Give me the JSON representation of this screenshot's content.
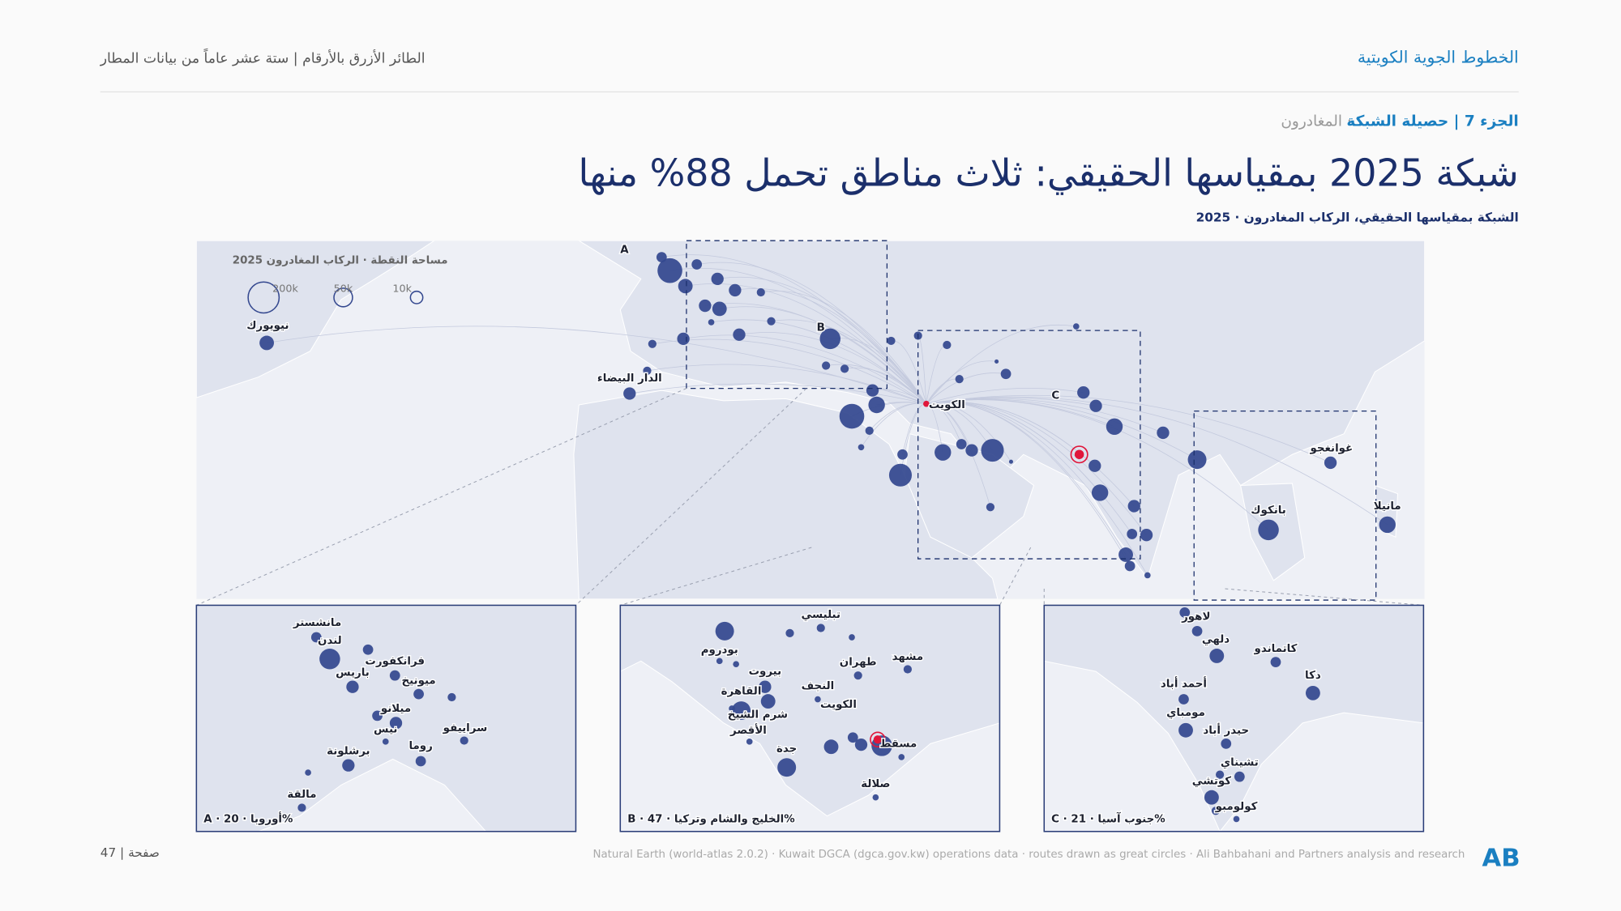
{
  "header": {
    "brand": "الخطوط الجوية الكويتية",
    "report": "الطائر الأزرق بالأرقام | ستة عشر عاماً من بيانات المطار"
  },
  "section": {
    "part": "الجزء 7 | حصيلة الشبكة",
    "topic": "· المغادرون"
  },
  "title": "شبكة 2025 بمقياسها الحقيقي: ثلاث مناطق تحمل 88% منها",
  "subtitle": "الشبكة بمقياسها الحقيقي، الركاب المغادرون · 2025",
  "legend": {
    "title": "مساحة النقطة · الركاب المغادرون 2025",
    "sizes": [
      "200k",
      "50k",
      "10k"
    ]
  },
  "map": {
    "labels": [
      "A",
      "B",
      "C",
      "نيويورك",
      "الدار البيضاء",
      "الكويت",
      "غوانغجو",
      "بانكوك",
      "مانيلا"
    ]
  },
  "insets": [
    {
      "caption": "A · أوروبا · 20%",
      "labels": [
        "مانشستر",
        "لندن",
        "فرانكفورت",
        "باريس",
        "ميونيخ",
        "ميلانو",
        "نيس",
        "سراييفو",
        "روما",
        "برشلونة",
        "مالقة"
      ]
    },
    {
      "caption": "B · الخليج والشام وتركيا · 47%",
      "labels": [
        "تبليسي",
        "بودروم",
        "طهران",
        "مشهد",
        "بيروت",
        "النجف",
        "القاهرة",
        "الكويت",
        "شرم الشيخ",
        "الأقصر",
        "مسقط",
        "جدة",
        "صلالة"
      ]
    },
    {
      "caption": "C · جنوب آسيا · 21%",
      "labels": [
        "لاهور",
        "دلهي",
        "كاتماندو",
        "أحمد أباد",
        "دكا",
        "مومباي",
        "حيدر أباد",
        "تشيناي",
        "كوتشي",
        "كولومبو"
      ]
    }
  ],
  "footer": {
    "page": "صفحة | 47",
    "source": "Natural Earth (world-atlas 2.0.2) · Kuwait DGCA (dgca.gov.kw) operations data · routes drawn as great circles · Ali Bahbahani and Partners analysis and research",
    "logo": "AB"
  }
}
